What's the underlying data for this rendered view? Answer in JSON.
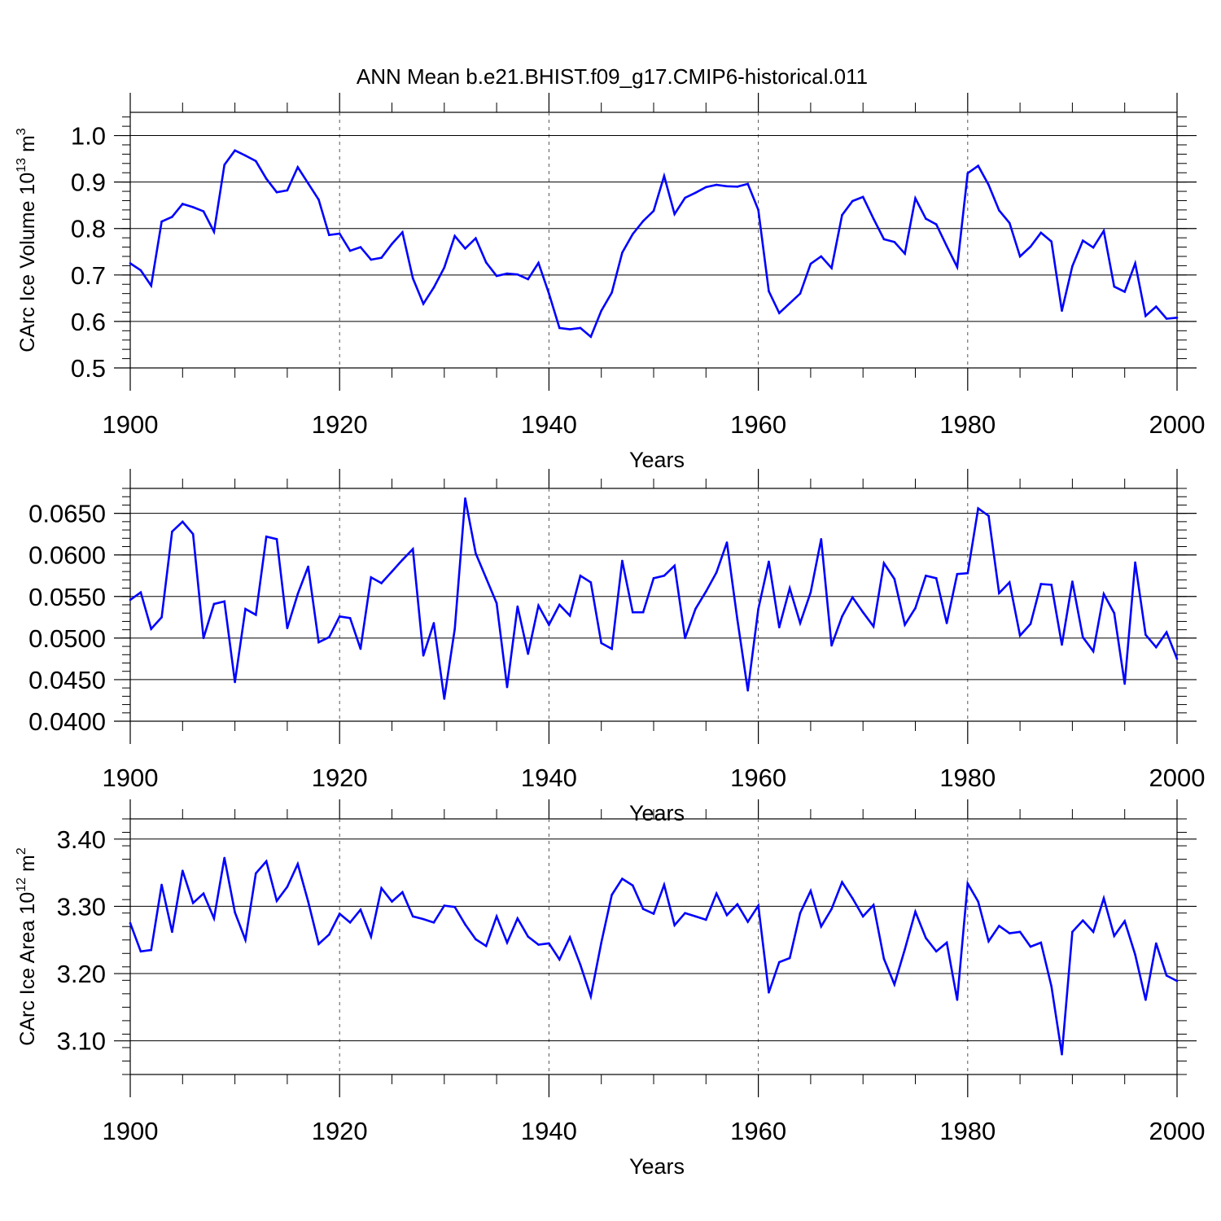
{
  "title": "ANN Mean b.e21.BHIST.f09_g17.CMIP6-historical.011",
  "line_color": "#0000ff",
  "chart_data": [
    {
      "type": "line",
      "name": "volume",
      "ylabel": "CArc Ice Volume 10",
      "ylabel_sup": "13",
      "ylabel_unit": " m",
      "ylabel_unit_sup": "3",
      "xlabel": "Years",
      "xlim": [
        1900,
        2000
      ],
      "ylim": [
        0.5,
        1.05
      ],
      "yticks": [
        0.5,
        0.6,
        0.7,
        0.8,
        0.9,
        1.0
      ],
      "ytick_labels": [
        "0.5",
        "0.6",
        "0.7",
        "0.8",
        "0.9",
        "1.0"
      ],
      "xticks": [
        1900,
        1920,
        1940,
        1960,
        1980,
        2000
      ],
      "xtick_labels": [
        "1900",
        "1920",
        "1940",
        "1960",
        "1980",
        "2000"
      ],
      "x_start": 1900,
      "values": [
        0.725,
        0.71,
        0.677,
        0.815,
        0.825,
        0.853,
        0.846,
        0.837,
        0.793,
        0.937,
        0.968,
        0.957,
        0.945,
        0.907,
        0.878,
        0.882,
        0.932,
        0.897,
        0.862,
        0.786,
        0.789,
        0.752,
        0.76,
        0.733,
        0.737,
        0.767,
        0.792,
        0.693,
        0.638,
        0.673,
        0.716,
        0.784,
        0.757,
        0.779,
        0.727,
        0.698,
        0.703,
        0.701,
        0.691,
        0.726,
        0.66,
        0.586,
        0.583,
        0.586,
        0.567,
        0.623,
        0.662,
        0.748,
        0.788,
        0.816,
        0.838,
        0.913,
        0.831,
        0.866,
        0.877,
        0.889,
        0.894,
        0.891,
        0.89,
        0.896,
        0.84,
        0.665,
        0.618,
        0.639,
        0.66,
        0.724,
        0.74,
        0.715,
        0.829,
        0.859,
        0.868,
        0.821,
        0.777,
        0.771,
        0.746,
        0.865,
        0.821,
        0.809,
        0.762,
        0.717,
        0.919,
        0.935,
        0.894,
        0.839,
        0.812,
        0.74,
        0.761,
        0.791,
        0.772,
        0.623,
        0.719,
        0.774,
        0.759,
        0.795,
        0.675,
        0.664,
        0.725,
        0.612,
        0.632,
        0.606,
        0.608
      ]
    },
    {
      "type": "line",
      "name": "thickness",
      "ylabel": "",
      "xlabel": "Years",
      "xlim": [
        1900,
        2000
      ],
      "ylim": [
        0.04,
        0.068
      ],
      "yticks": [
        0.04,
        0.045,
        0.05,
        0.055,
        0.06,
        0.065
      ],
      "ytick_labels": [
        "0.0400",
        "0.0450",
        "0.0500",
        "0.0550",
        "0.0600",
        "0.0650"
      ],
      "xticks": [
        1900,
        1920,
        1940,
        1960,
        1980,
        2000
      ],
      "xtick_labels": [
        "1900",
        "1920",
        "1940",
        "1960",
        "1980",
        "2000"
      ],
      "x_start": 1900,
      "values": [
        0.0546,
        0.0555,
        0.0511,
        0.0525,
        0.0628,
        0.064,
        0.0625,
        0.05,
        0.0541,
        0.0544,
        0.0447,
        0.0535,
        0.0528,
        0.0622,
        0.0619,
        0.0512,
        0.0553,
        0.0586,
        0.0495,
        0.0501,
        0.0526,
        0.0524,
        0.0487,
        0.0573,
        0.0566,
        0.058,
        0.0594,
        0.0607,
        0.0479,
        0.0518,
        0.0427,
        0.0511,
        0.0668,
        0.0602,
        0.0572,
        0.0542,
        0.0441,
        0.0538,
        0.0481,
        0.0539,
        0.0516,
        0.054,
        0.0527,
        0.0575,
        0.0567,
        0.0494,
        0.0487,
        0.0593,
        0.0531,
        0.0531,
        0.0572,
        0.0575,
        0.0587,
        0.05,
        0.0535,
        0.0556,
        0.0579,
        0.0615,
        0.0522,
        0.0437,
        0.0535,
        0.0592,
        0.0513,
        0.056,
        0.0518,
        0.0555,
        0.0619,
        0.0491,
        0.0526,
        0.0549,
        0.0531,
        0.0514,
        0.059,
        0.0571,
        0.0516,
        0.0536,
        0.0575,
        0.0572,
        0.0518,
        0.0577,
        0.0578,
        0.0656,
        0.0647,
        0.0554,
        0.0567,
        0.0503,
        0.0517,
        0.0565,
        0.0564,
        0.0492,
        0.0568,
        0.0501,
        0.0484,
        0.0553,
        0.053,
        0.0445,
        0.0591,
        0.0504,
        0.0489,
        0.0507,
        0.0475
      ]
    },
    {
      "type": "line",
      "name": "area",
      "ylabel": "CArc Ice Area 10",
      "ylabel_sup": "12",
      "ylabel_unit": " m",
      "ylabel_unit_sup": "2",
      "xlabel": "Years",
      "xlim": [
        1900,
        2000
      ],
      "ylim": [
        3.05,
        3.43
      ],
      "yticks": [
        3.1,
        3.2,
        3.3,
        3.4
      ],
      "ytick_labels": [
        "3.10",
        "3.20",
        "3.30",
        "3.40"
      ],
      "xticks": [
        1900,
        1920,
        1940,
        1960,
        1980,
        2000
      ],
      "xtick_labels": [
        "1900",
        "1920",
        "1940",
        "1960",
        "1980",
        "2000"
      ],
      "x_start": 1900,
      "values": [
        3.275,
        3.233,
        3.235,
        3.332,
        3.262,
        3.353,
        3.305,
        3.319,
        3.282,
        3.372,
        3.291,
        3.25,
        3.349,
        3.367,
        3.308,
        3.329,
        3.363,
        3.307,
        3.244,
        3.258,
        3.289,
        3.276,
        3.295,
        3.255,
        3.327,
        3.307,
        3.321,
        3.285,
        3.281,
        3.276,
        3.301,
        3.299,
        3.273,
        3.251,
        3.241,
        3.285,
        3.246,
        3.282,
        3.255,
        3.243,
        3.245,
        3.221,
        3.254,
        3.213,
        3.166,
        3.246,
        3.317,
        3.341,
        3.331,
        3.296,
        3.289,
        3.332,
        3.272,
        3.29,
        3.285,
        3.28,
        3.319,
        3.287,
        3.303,
        3.277,
        3.301,
        3.172,
        3.217,
        3.223,
        3.29,
        3.323,
        3.27,
        3.296,
        3.336,
        3.312,
        3.285,
        3.302,
        3.222,
        3.184,
        3.236,
        3.292,
        3.253,
        3.233,
        3.246,
        3.161,
        3.334,
        3.307,
        3.248,
        3.271,
        3.26,
        3.262,
        3.24,
        3.246,
        3.181,
        3.08,
        3.262,
        3.279,
        3.262,
        3.312,
        3.256,
        3.278,
        3.228,
        3.161,
        3.245,
        3.197,
        3.189
      ]
    }
  ]
}
